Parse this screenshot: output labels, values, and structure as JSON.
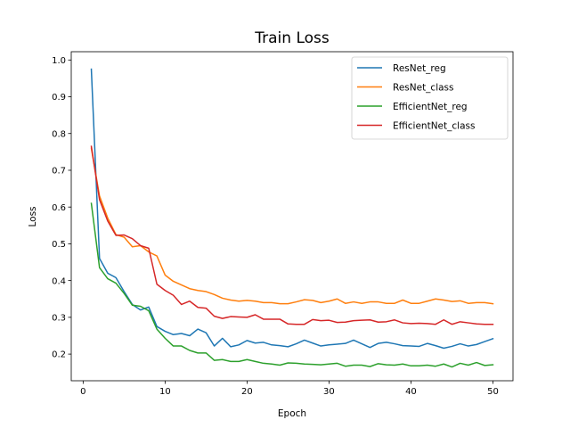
{
  "chart_data": {
    "type": "line",
    "title": "Train Loss",
    "xlabel": "Epoch",
    "ylabel": "Loss",
    "xlim": [
      -1.45,
      52.45
    ],
    "ylim": [
      0.1275,
      1.0225
    ],
    "xticks": [
      0,
      10,
      20,
      30,
      40,
      50
    ],
    "yticks": [
      0.2,
      0.3,
      0.4,
      0.5,
      0.6,
      0.7,
      0.8,
      0.9,
      1.0
    ],
    "grid": false,
    "legend_position": "top-right",
    "x": [
      1,
      2,
      3,
      4,
      5,
      6,
      7,
      8,
      9,
      10,
      11,
      12,
      13,
      14,
      15,
      16,
      17,
      18,
      19,
      20,
      21,
      22,
      23,
      24,
      25,
      26,
      27,
      28,
      29,
      30,
      31,
      32,
      33,
      34,
      35,
      36,
      37,
      38,
      39,
      40,
      41,
      42,
      43,
      44,
      45,
      46,
      47,
      48,
      49,
      50
    ],
    "series": [
      {
        "name": "ResNet_reg",
        "color": "#1f77b4",
        "values": [
          0.975,
          0.46,
          0.42,
          0.408,
          0.37,
          0.335,
          0.32,
          0.328,
          0.275,
          0.262,
          0.253,
          0.256,
          0.25,
          0.268,
          0.258,
          0.222,
          0.243,
          0.22,
          0.225,
          0.237,
          0.23,
          0.232,
          0.225,
          0.223,
          0.22,
          0.228,
          0.238,
          0.23,
          0.222,
          0.225,
          0.227,
          0.229,
          0.238,
          0.228,
          0.218,
          0.229,
          0.232,
          0.228,
          0.223,
          0.222,
          0.221,
          0.229,
          0.223,
          0.216,
          0.221,
          0.228,
          0.222,
          0.226,
          0.234,
          0.242
        ]
      },
      {
        "name": "ResNet_class",
        "color": "#ff7f0e",
        "values": [
          0.76,
          0.63,
          0.57,
          0.525,
          0.518,
          0.492,
          0.495,
          0.478,
          0.467,
          0.415,
          0.398,
          0.388,
          0.378,
          0.373,
          0.37,
          0.362,
          0.352,
          0.347,
          0.344,
          0.346,
          0.344,
          0.34,
          0.34,
          0.337,
          0.337,
          0.342,
          0.348,
          0.346,
          0.34,
          0.344,
          0.35,
          0.338,
          0.342,
          0.338,
          0.342,
          0.342,
          0.338,
          0.338,
          0.347,
          0.338,
          0.338,
          0.344,
          0.35,
          0.347,
          0.343,
          0.345,
          0.338,
          0.34,
          0.34,
          0.337
        ]
      },
      {
        "name": "EfficientNet_reg",
        "color": "#2ca02c",
        "values": [
          0.61,
          0.435,
          0.405,
          0.393,
          0.365,
          0.333,
          0.33,
          0.318,
          0.268,
          0.243,
          0.222,
          0.222,
          0.21,
          0.203,
          0.203,
          0.183,
          0.185,
          0.18,
          0.18,
          0.185,
          0.18,
          0.175,
          0.173,
          0.17,
          0.176,
          0.175,
          0.173,
          0.172,
          0.171,
          0.173,
          0.175,
          0.167,
          0.17,
          0.17,
          0.166,
          0.174,
          0.171,
          0.17,
          0.173,
          0.168,
          0.168,
          0.17,
          0.167,
          0.173,
          0.165,
          0.175,
          0.17,
          0.177,
          0.169,
          0.171
        ]
      },
      {
        "name": "EfficientNet_class",
        "color": "#d62728",
        "values": [
          0.765,
          0.62,
          0.562,
          0.523,
          0.524,
          0.514,
          0.495,
          0.488,
          0.39,
          0.373,
          0.36,
          0.335,
          0.344,
          0.327,
          0.325,
          0.303,
          0.297,
          0.302,
          0.301,
          0.3,
          0.307,
          0.295,
          0.295,
          0.295,
          0.282,
          0.281,
          0.281,
          0.294,
          0.291,
          0.292,
          0.286,
          0.287,
          0.291,
          0.292,
          0.293,
          0.287,
          0.288,
          0.293,
          0.285,
          0.283,
          0.284,
          0.283,
          0.281,
          0.293,
          0.281,
          0.288,
          0.285,
          0.282,
          0.281,
          0.281
        ]
      }
    ]
  }
}
